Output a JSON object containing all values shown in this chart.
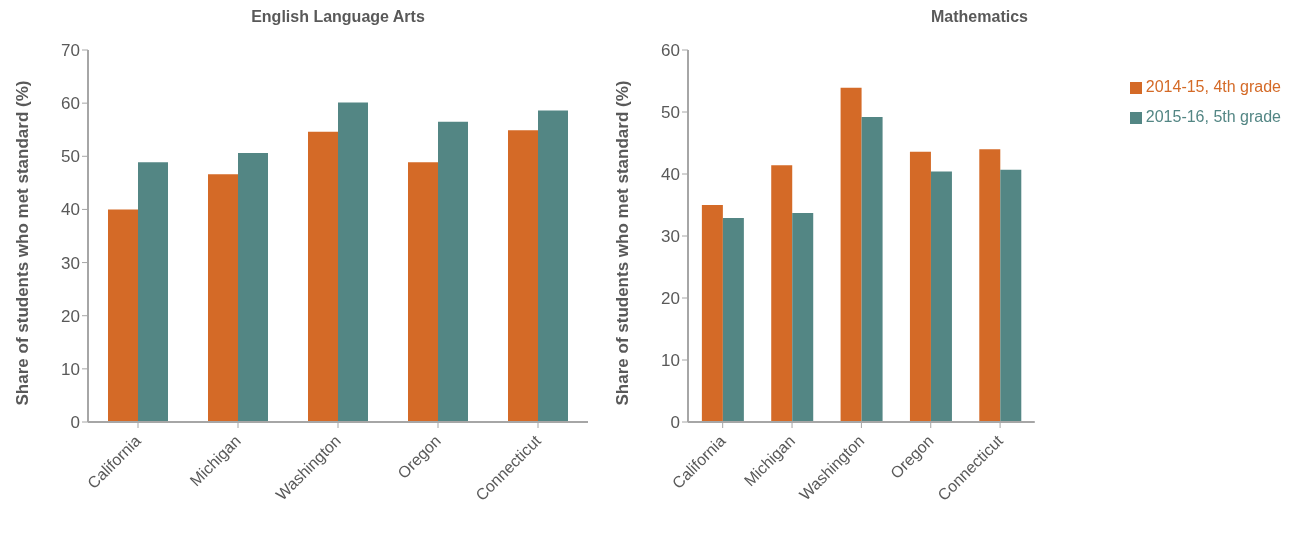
{
  "chart_data": [
    {
      "type": "bar",
      "title": "English Language Arts",
      "ylabel": "Share of students who met standard (%)",
      "categories": [
        "California",
        "Michigan",
        "Washington",
        "Oregon",
        "Connecticut"
      ],
      "series": [
        {
          "color": "#d46a27",
          "values": [
            40.0,
            46.6,
            54.6,
            48.9,
            54.9
          ]
        },
        {
          "color": "#538684",
          "values": [
            48.9,
            50.6,
            60.1,
            56.5,
            58.6
          ]
        }
      ],
      "ylim": [
        0,
        70
      ],
      "yticks": [
        0,
        10,
        20,
        30,
        40,
        50,
        60,
        70
      ],
      "grid": false,
      "legend": false
    },
    {
      "type": "bar",
      "title": "Mathematics",
      "ylabel": "Share of students who met standard (%)",
      "categories": [
        "California",
        "Michigan",
        "Washington",
        "Oregon",
        "Connecticut"
      ],
      "series": [
        {
          "name": "2014-15, 4th grade",
          "color": "#d46a27",
          "values": [
            35.0,
            41.4,
            53.9,
            43.6,
            44.0
          ]
        },
        {
          "name": "2015-16, 5th grade",
          "color": "#538684",
          "values": [
            32.9,
            33.7,
            49.2,
            40.4,
            40.7
          ]
        }
      ],
      "ylim": [
        0,
        60
      ],
      "yticks": [
        0,
        10,
        20,
        30,
        40,
        50,
        60
      ],
      "grid": false,
      "legend": "top right"
    }
  ]
}
